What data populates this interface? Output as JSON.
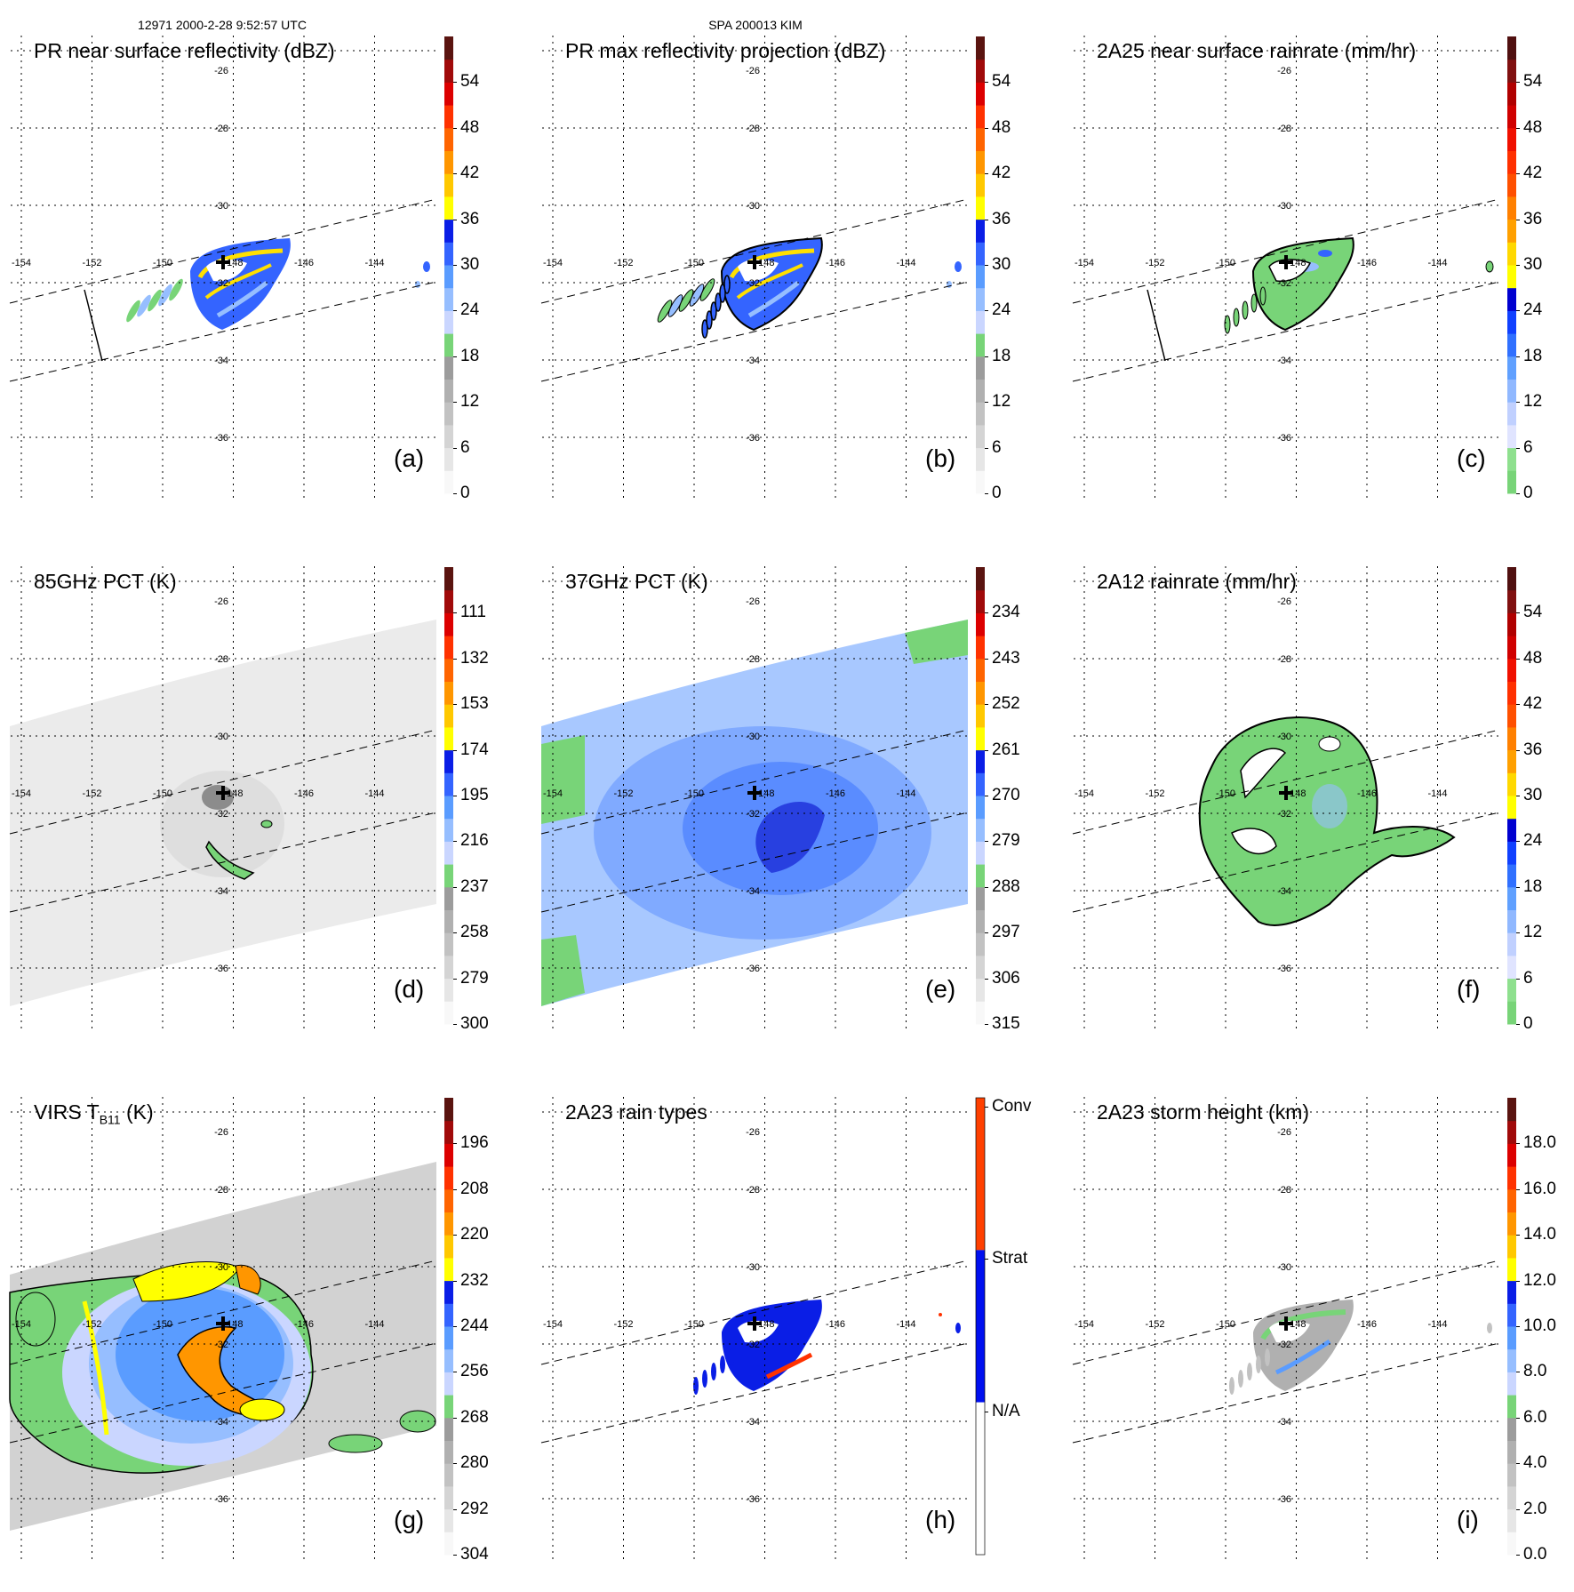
{
  "header": {
    "left": "12971 2000-2-28 9:52:57 UTC",
    "center": "SPA 200013 KIM"
  },
  "axes": {
    "lon_labels": [
      "-154",
      "-152",
      "-150",
      "-148",
      "-146",
      "-144"
    ],
    "lat_labels": [
      "-26",
      "-28",
      "-30",
      "-32",
      "-34",
      "-36"
    ]
  },
  "colors": {
    "center_marker": "#000000",
    "contour": "#000000"
  },
  "panels": [
    {
      "id": "a",
      "title": "PR near surface reflectivity (dBZ)",
      "letter": "(a)",
      "scene": "pr_refl",
      "colorbar": {
        "palette": "std",
        "min": 0,
        "max": 60,
        "labels": [
          "0",
          "6",
          "12",
          "18",
          "24",
          "30",
          "36",
          "42",
          "48",
          "54"
        ]
      }
    },
    {
      "id": "b",
      "title": "PR max reflectivity projection (dBZ)",
      "letter": "(b)",
      "scene": "pr_max",
      "colorbar": {
        "palette": "std",
        "min": 0,
        "max": 60,
        "labels": [
          "0",
          "6",
          "12",
          "18",
          "24",
          "30",
          "36",
          "42",
          "48",
          "54"
        ]
      }
    },
    {
      "id": "c",
      "title": "2A25 near surface rainrate (mm/hr)",
      "letter": "(c)",
      "scene": "pr_rain",
      "colorbar": {
        "palette": "rain",
        "min": 0,
        "max": 60,
        "labels": [
          "0",
          "6",
          "12",
          "18",
          "24",
          "30",
          "36",
          "42",
          "48",
          "54"
        ]
      }
    },
    {
      "id": "d",
      "title": "85GHz PCT (K)",
      "letter": "(d)",
      "scene": "pct85",
      "colorbar": {
        "palette": "std",
        "min": 300,
        "max": 90,
        "labels": [
          "300",
          "279",
          "258",
          "237",
          "216",
          "195",
          "174",
          "153",
          "132",
          "111"
        ]
      }
    },
    {
      "id": "e",
      "title": "37GHz PCT (K)",
      "letter": "(e)",
      "scene": "pct37",
      "colorbar": {
        "palette": "std",
        "min": 315,
        "max": 225,
        "labels": [
          "315",
          "306",
          "297",
          "288",
          "279",
          "270",
          "261",
          "252",
          "243",
          "234"
        ]
      }
    },
    {
      "id": "f",
      "title": "2A12 rainrate (mm/hr)",
      "letter": "(f)",
      "scene": "tmi_rain",
      "colorbar": {
        "palette": "rain",
        "min": 0,
        "max": 60,
        "labels": [
          "0",
          "6",
          "12",
          "18",
          "24",
          "30",
          "36",
          "42",
          "48",
          "54"
        ]
      }
    },
    {
      "id": "g",
      "title": "VIRS T",
      "title_sub": "B11",
      "title_end": " (K)",
      "letter": "(g)",
      "scene": "virs",
      "colorbar": {
        "palette": "std",
        "min": 304,
        "max": 184,
        "labels": [
          "304",
          "292",
          "280",
          "268",
          "256",
          "244",
          "232",
          "220",
          "208",
          "196"
        ]
      }
    },
    {
      "id": "h",
      "title": "2A23 rain types",
      "letter": "(h)",
      "scene": "raintype",
      "colorbar": {
        "palette": "types",
        "labels": [
          "N/A",
          "Strat",
          "Conv"
        ]
      }
    },
    {
      "id": "i",
      "title": "2A23 storm height (km)",
      "letter": "(i)",
      "scene": "height",
      "colorbar": {
        "palette": "std",
        "min": 0,
        "max": 20,
        "labels": [
          "0.0",
          "2.0",
          "4.0",
          "6.0",
          "8.0",
          "10.0",
          "12.0",
          "14.0",
          "16.0",
          "18.0"
        ]
      }
    }
  ]
}
